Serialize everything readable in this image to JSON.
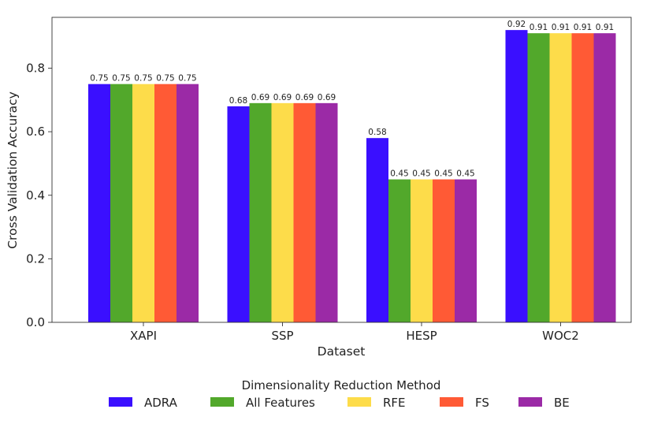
{
  "chart_data": {
    "type": "bar",
    "title": "",
    "xlabel": "Dataset",
    "ylabel": "Cross Validation Accuracy",
    "categories": [
      "XAPI",
      "SSP",
      "HESP",
      "WOC2"
    ],
    "ylim": [
      0,
      0.96
    ],
    "yticks": [
      0.0,
      0.2,
      0.4,
      0.6,
      0.8
    ],
    "ytick_labels": [
      "0.0",
      "0.2",
      "0.4",
      "0.6",
      "0.8"
    ],
    "grid": false,
    "legend": {
      "title": "Dimensionality Reduction Method",
      "placement": "bottom-center"
    },
    "series": [
      {
        "name": "ADRA",
        "color": "#3a0fff",
        "values": [
          0.75,
          0.68,
          0.58,
          0.92
        ],
        "labels": [
          "0.75",
          "0.68",
          "0.58",
          "0.92"
        ]
      },
      {
        "name": "All Features",
        "color": "#52a82b",
        "values": [
          0.75,
          0.69,
          0.45,
          0.91
        ],
        "labels": [
          "0.75",
          "0.69",
          "0.45",
          "0.91"
        ]
      },
      {
        "name": "RFE",
        "color": "#fddc4a",
        "values": [
          0.75,
          0.69,
          0.45,
          0.91
        ],
        "labels": [
          "0.75",
          "0.69",
          "0.45",
          "0.91"
        ]
      },
      {
        "name": "FS",
        "color": "#ff5a35",
        "values": [
          0.75,
          0.69,
          0.45,
          0.91
        ],
        "labels": [
          "0.75",
          "0.69",
          "0.45",
          "0.91"
        ]
      },
      {
        "name": "BE",
        "color": "#9b2aa6",
        "values": [
          0.75,
          0.69,
          0.45,
          0.91
        ],
        "labels": [
          "0.75",
          "0.69",
          "0.45",
          "0.91"
        ]
      }
    ]
  }
}
